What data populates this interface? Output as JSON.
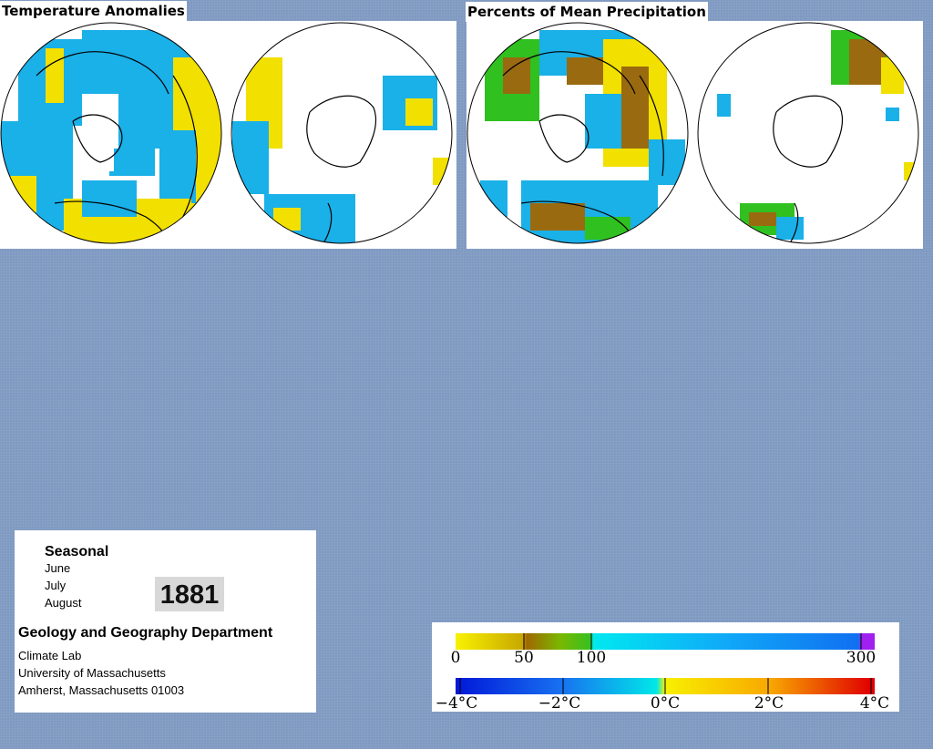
{
  "panels": {
    "temperature": {
      "title": "Temperature Anomalies"
    },
    "precipitation": {
      "title": "Percents of Mean Precipitation"
    }
  },
  "info": {
    "season": "Seasonal",
    "months": [
      "June",
      "July",
      "August"
    ],
    "year": "1881",
    "department": "Geology and Geography Department",
    "lab": "Climate Lab",
    "university": "University of Massachusetts",
    "address": "Amherst, Massachusetts 01003"
  },
  "legend": {
    "precipitation": {
      "ticks": [
        "0",
        "50",
        "100",
        "300"
      ],
      "colors": [
        "#f8f200",
        "#c8a800",
        "#a06800",
        "#7ab800",
        "#38c020",
        "#00e8f0",
        "#10a8f8",
        "#1070f0",
        "#a020f0"
      ]
    },
    "temperature": {
      "ticks": [
        "−4°C",
        "−2°C",
        "0°C",
        "2°C",
        "4°C"
      ],
      "colors": [
        "#0018d8",
        "#1870f0",
        "#18b0f0",
        "#00e8e8",
        "#f8f000",
        "#f8a800",
        "#f04800",
        "#e00000"
      ]
    }
  },
  "colors": {
    "background": "#7f99c0",
    "anomaly_cold": "#1ab0e8",
    "anomaly_warm": "#f2e000",
    "precip_dry": "#9a6a10",
    "precip_wet": "#30c020"
  }
}
